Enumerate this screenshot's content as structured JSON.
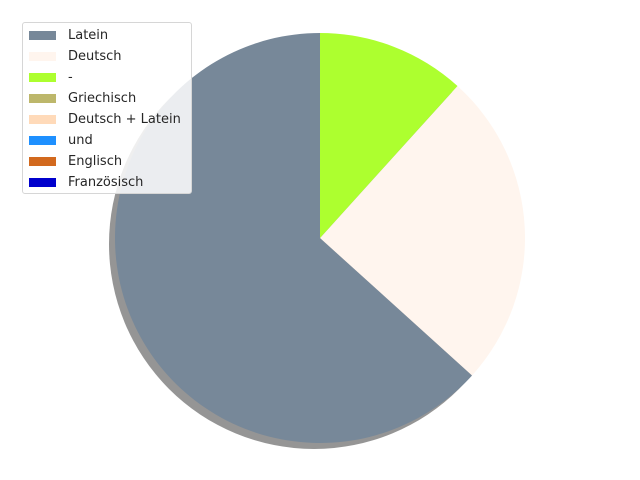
{
  "chart_data": {
    "type": "pie",
    "title": "",
    "categories": [
      "Latein",
      "Deutsch",
      "-",
      "Griechisch",
      "Deutsch + Latein",
      "und",
      "Englisch",
      "Französisch"
    ],
    "values": [
      63.3,
      25.0,
      11.7,
      0,
      0,
      0,
      0,
      0
    ],
    "colors": [
      "#778899",
      "#fff5ee",
      "#adff2f",
      "#bdb76b",
      "#ffdab9",
      "#1e90ff",
      "#d2691e",
      "#0000cd"
    ],
    "start_angle_deg": 90,
    "direction": "counterclockwise",
    "shadow": true,
    "legend": "top-left"
  }
}
